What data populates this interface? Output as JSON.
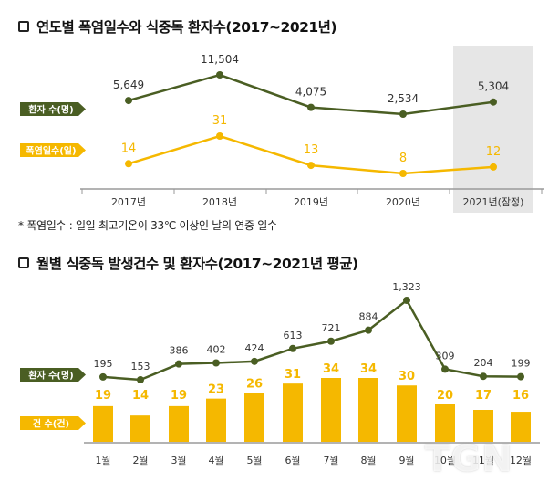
{
  "title1": "연도별 폭염일수와 식중독 환자수(2017~2021년)",
  "title2": "월별 식중독 발생건수 및 환자수(2017~2021년 평균)",
  "footnote": "* 폭염일수 : 일일 최고기온이 33℃ 이상인 날의 연중 일수",
  "watermark": "TGN",
  "colors": {
    "green": "#4a5e23",
    "yellow": "#f5b800",
    "axis": "#9a9a9a",
    "shade": "#e6e6e6"
  },
  "chart_data": [
    {
      "type": "line",
      "categories": [
        "2017년",
        "2018년",
        "2019년",
        "2020년",
        "2021년(잠정)"
      ],
      "series": [
        {
          "name": "환자 수(명)",
          "values": [
            5649,
            11504,
            4075,
            2534,
            5304
          ],
          "labels": [
            "5,649",
            "11,504",
            "4,075",
            "2,534",
            "5,304"
          ]
        },
        {
          "name": "폭염일수(일)",
          "values": [
            14,
            31,
            13,
            8,
            12
          ],
          "labels": [
            "14",
            "31",
            "13",
            "8",
            "12"
          ]
        }
      ],
      "highlight_category": "2021년(잠정)"
    },
    {
      "type": "bar",
      "categories": [
        "1월",
        "2월",
        "3월",
        "4월",
        "5월",
        "6월",
        "7월",
        "8월",
        "9월",
        "10월",
        "11월",
        "12월"
      ],
      "series": [
        {
          "name": "환자 수(명)",
          "type": "line",
          "values": [
            195,
            153,
            386,
            402,
            424,
            613,
            721,
            884,
            1323,
            309,
            204,
            199
          ],
          "labels": [
            "195",
            "153",
            "386",
            "402",
            "424",
            "613",
            "721",
            "884",
            "1,323",
            "309",
            "204",
            "199"
          ]
        },
        {
          "name": "건 수(건)",
          "type": "bar",
          "values": [
            19,
            14,
            19,
            23,
            26,
            31,
            34,
            34,
            30,
            20,
            17,
            16
          ],
          "labels": [
            "19",
            "14",
            "19",
            "23",
            "26",
            "31",
            "34",
            "34",
            "30",
            "20",
            "17",
            "16"
          ]
        }
      ]
    }
  ]
}
